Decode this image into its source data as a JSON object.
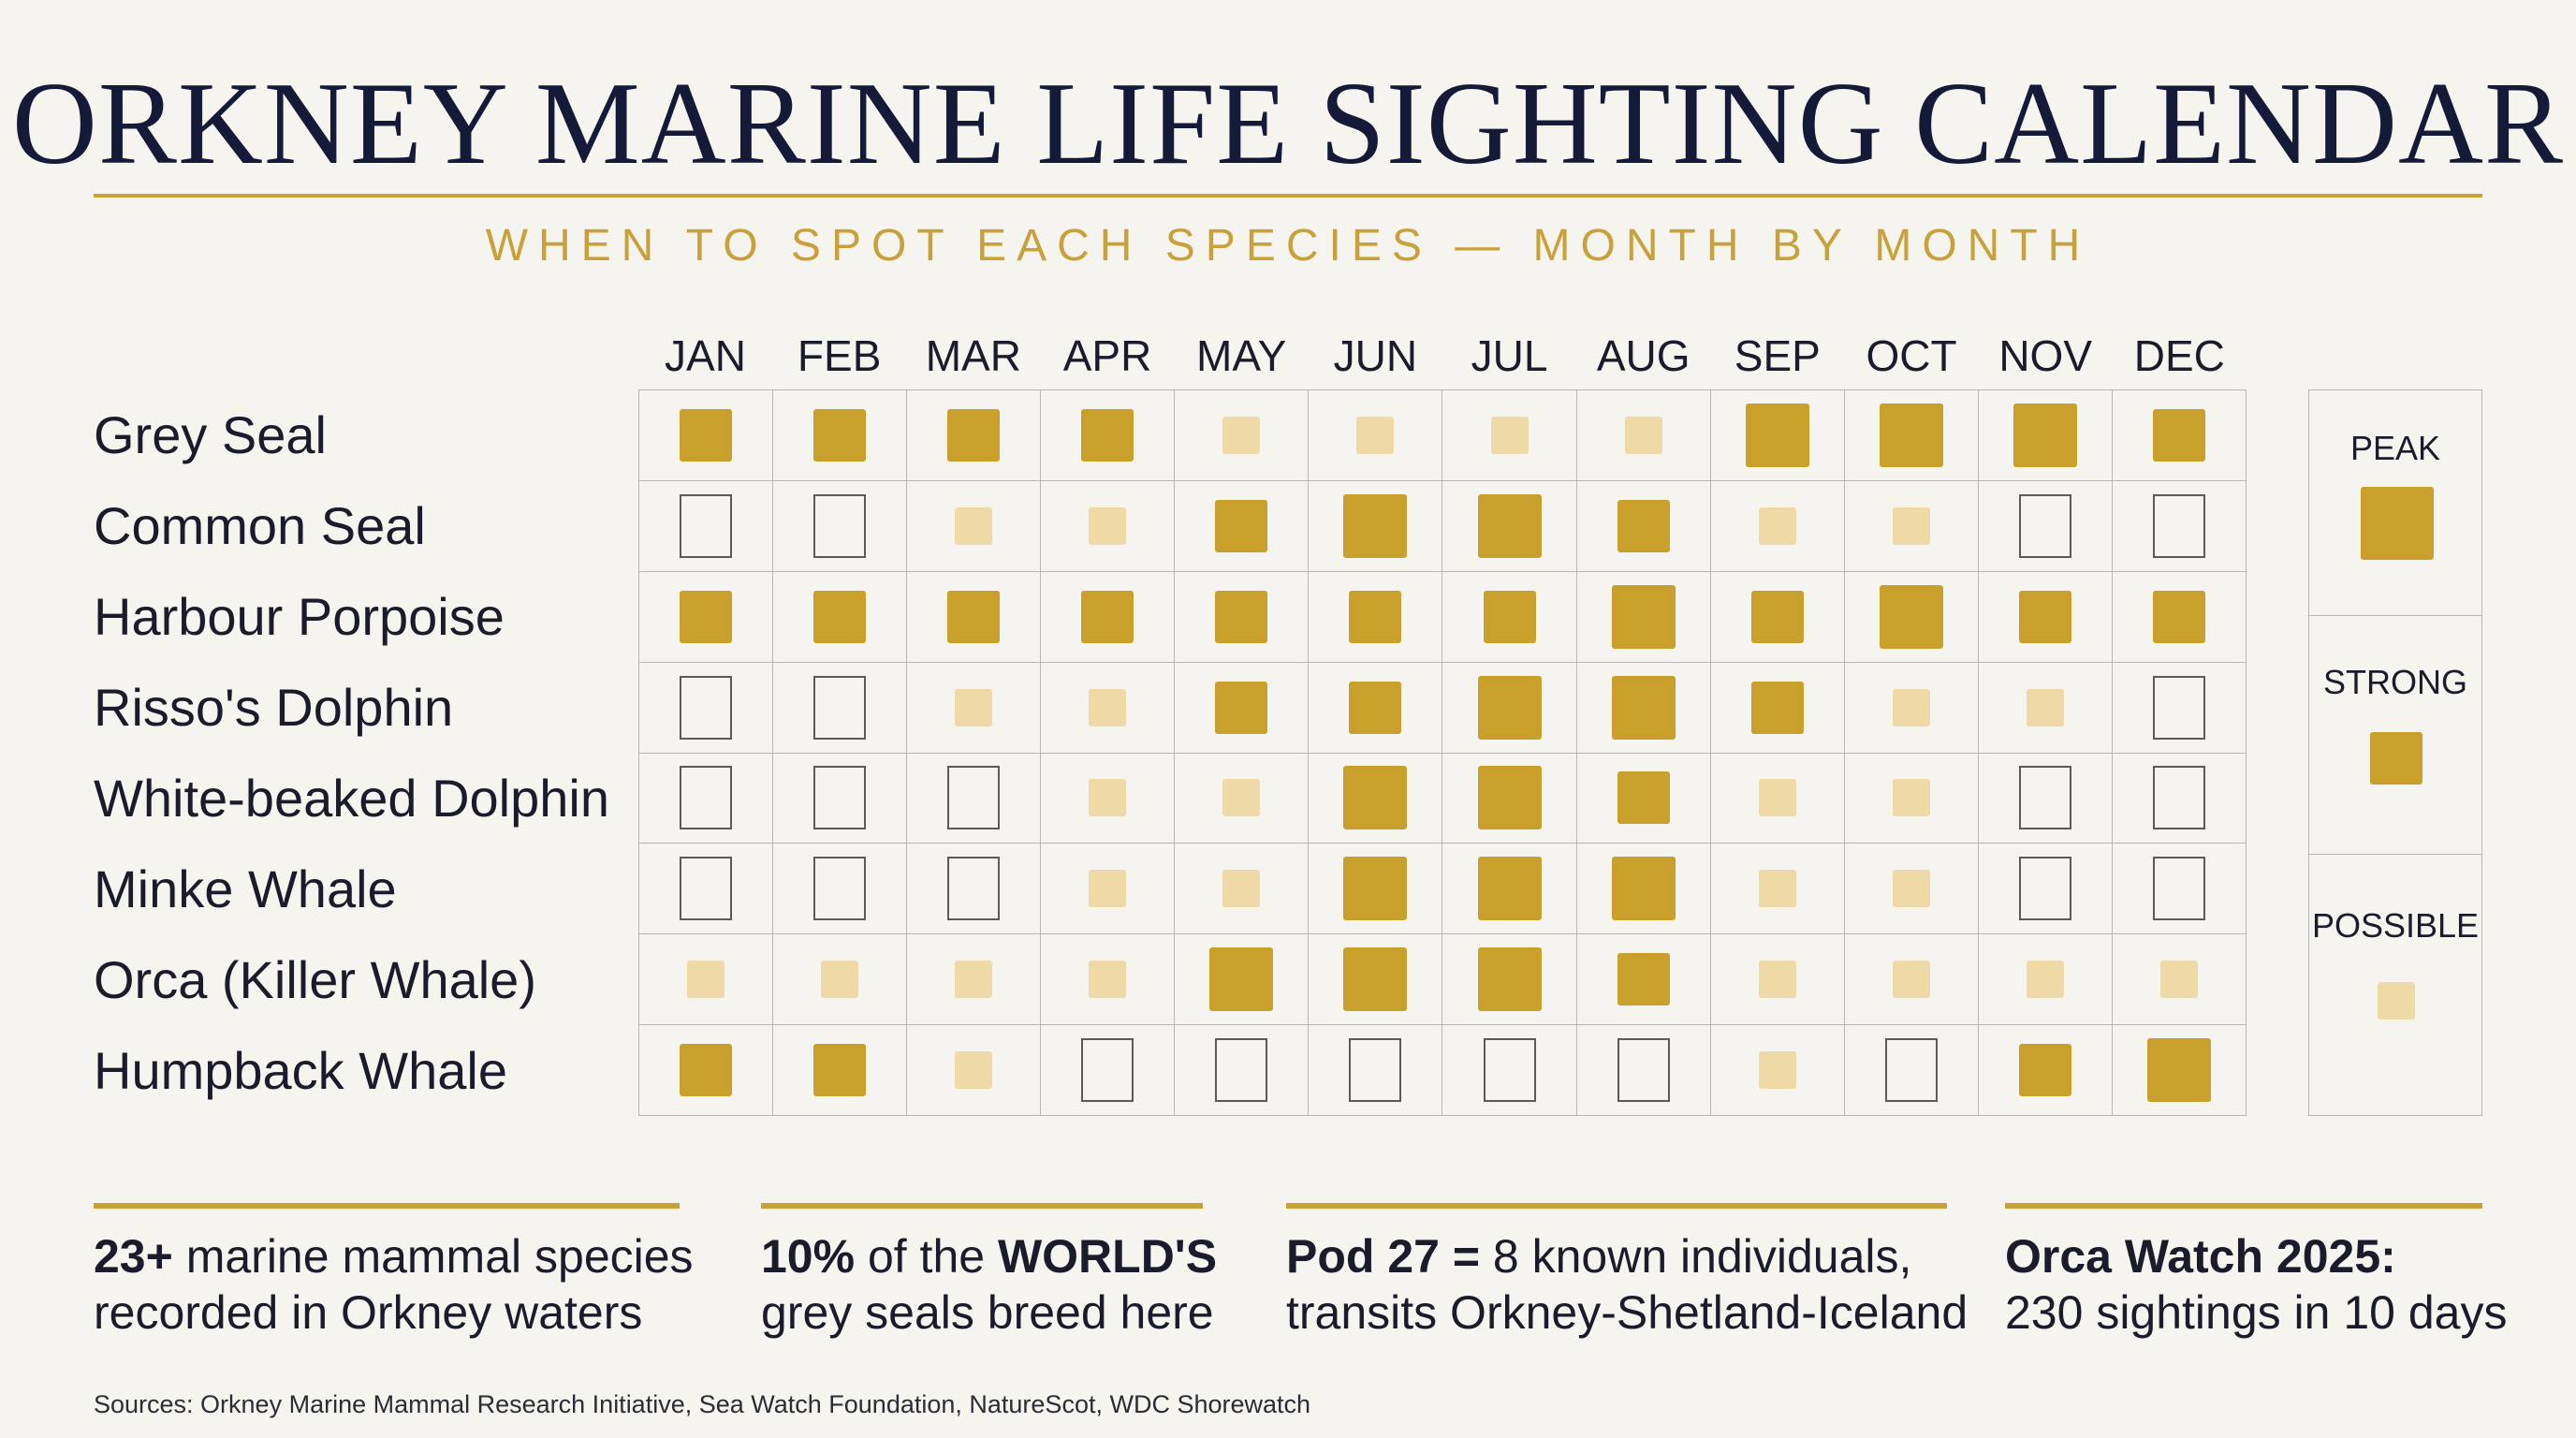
{
  "title": "ORKNEY MARINE LIFE SIGHTING CALENDAR",
  "subtitle": "WHEN TO SPOT EACH SPECIES — MONTH BY MONTH",
  "colors": {
    "accent": "#c9a13a",
    "peak": "#c9a02c",
    "strong": "#c9a02c",
    "possible": "#efd9a6",
    "title": "#141a38"
  },
  "months": [
    "JAN",
    "FEB",
    "MAR",
    "APR",
    "MAY",
    "JUN",
    "JUL",
    "AUG",
    "SEP",
    "OCT",
    "NOV",
    "DEC"
  ],
  "species": [
    {
      "name": "Grey Seal",
      "levels": [
        "strong",
        "strong",
        "strong",
        "strong",
        "possible",
        "possible",
        "possible",
        "possible",
        "peak",
        "peak",
        "peak",
        "strong"
      ]
    },
    {
      "name": "Common Seal",
      "levels": [
        "none",
        "none",
        "possible",
        "possible",
        "strong",
        "peak",
        "peak",
        "strong",
        "possible",
        "possible",
        "none",
        "none"
      ]
    },
    {
      "name": "Harbour Porpoise",
      "levels": [
        "strong",
        "strong",
        "strong",
        "strong",
        "strong",
        "strong",
        "strong",
        "peak",
        "strong",
        "peak",
        "strong",
        "strong"
      ]
    },
    {
      "name": "Risso's Dolphin",
      "levels": [
        "none",
        "none",
        "possible",
        "possible",
        "strong",
        "strong",
        "peak",
        "peak",
        "strong",
        "possible",
        "possible",
        "none"
      ]
    },
    {
      "name": "White-beaked Dolphin",
      "levels": [
        "none",
        "none",
        "none",
        "possible",
        "possible",
        "peak",
        "peak",
        "strong",
        "possible",
        "possible",
        "none",
        "none"
      ]
    },
    {
      "name": "Minke Whale",
      "levels": [
        "none",
        "none",
        "none",
        "possible",
        "possible",
        "peak",
        "peak",
        "peak",
        "possible",
        "possible",
        "none",
        "none"
      ]
    },
    {
      "name": "Orca (Killer Whale)",
      "levels": [
        "possible",
        "possible",
        "possible",
        "possible",
        "peak",
        "peak",
        "peak",
        "strong",
        "possible",
        "possible",
        "possible",
        "possible"
      ]
    },
    {
      "name": "Humpback Whale",
      "levels": [
        "strong",
        "strong",
        "possible",
        "none",
        "none",
        "none",
        "none",
        "none",
        "possible",
        "none",
        "strong",
        "peak"
      ]
    }
  ],
  "legend": {
    "peak": "PEAK",
    "strong": "STRONG",
    "possible": "POSSIBLE"
  },
  "stats": [
    {
      "bold": "23+",
      "rest": " marine mammal species",
      "line2": "recorded in Orkney waters"
    },
    {
      "bold": "10%",
      "mid": " of the ",
      "bold2": "WORLD'S",
      "line2": "grey seals breed here"
    },
    {
      "bold": "Pod 27 =",
      "rest": " 8 known individuals,",
      "line2": "transits Orkney-Shetland-Iceland"
    },
    {
      "bold": "Orca Watch 2025:",
      "rest": "",
      "line2": "230 sightings in 10 days"
    }
  ],
  "sources": "Sources: Orkney Marine Mammal Research Initiative, Sea Watch Foundation, NatureScot, WDC Shorewatch"
}
